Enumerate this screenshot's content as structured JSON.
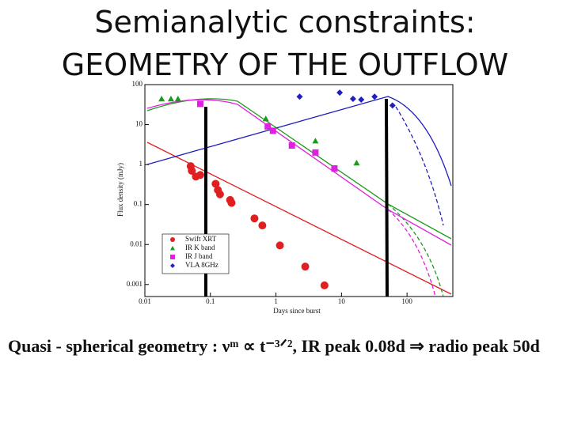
{
  "slide": {
    "title": [
      "Semianalytic constraints:",
      "GEOMETRY OF THE OUTFLOW"
    ],
    "formula": "Quasi - spherical geometry : νᵐ ∝ t⁻³ᐟ², IR peak 0.08d ⇒ radio peak 50d"
  },
  "chart_data": {
    "type": "scatter",
    "xlabel": "Days since burst",
    "ylabel": "Flux density (mJy)",
    "xscale": "log",
    "yscale": "log",
    "legend": "lower left",
    "xlim": [
      0.01,
      500
    ],
    "xticks": [
      0.01,
      0.1,
      1,
      10,
      100
    ],
    "ylim": [
      0.0005,
      100
    ],
    "yticks": [
      0.001,
      0.01,
      0.1,
      1,
      10,
      100
    ],
    "series": [
      {
        "name": "Swift XRT",
        "color": "#e02020",
        "marker": "circle",
        "x": [
          0.05,
          0.052,
          0.06,
          0.07,
          0.12,
          0.13,
          0.14,
          0.2,
          0.21,
          0.47,
          0.62,
          1.15,
          2.8,
          5.5
        ],
        "values": [
          0.91,
          0.7,
          0.5,
          0.55,
          0.33,
          0.23,
          0.18,
          0.13,
          0.11,
          0.045,
          0.03,
          0.0095,
          0.0028,
          0.00095
        ]
      },
      {
        "name": "IR K band",
        "color": "#1a9a1a",
        "marker": "triangle",
        "x": [
          0.018,
          0.025,
          0.032,
          0.7,
          4,
          17
        ],
        "values": [
          44,
          44,
          44,
          14,
          3.9,
          1.1
        ]
      },
      {
        "name": "IR J band",
        "color": "#e020e0",
        "marker": "square",
        "x": [
          0.07,
          0.75,
          0.9,
          1.75,
          4,
          7.8
        ],
        "values": [
          33,
          9,
          7,
          3,
          2,
          0.8
        ]
      },
      {
        "name": "VLA 8GHz",
        "color": "#2020c0",
        "marker": "diamond",
        "x": [
          2.3,
          9.4,
          15,
          20,
          32,
          60
        ],
        "values": [
          50,
          63,
          44,
          42,
          50,
          30
        ]
      }
    ]
  }
}
